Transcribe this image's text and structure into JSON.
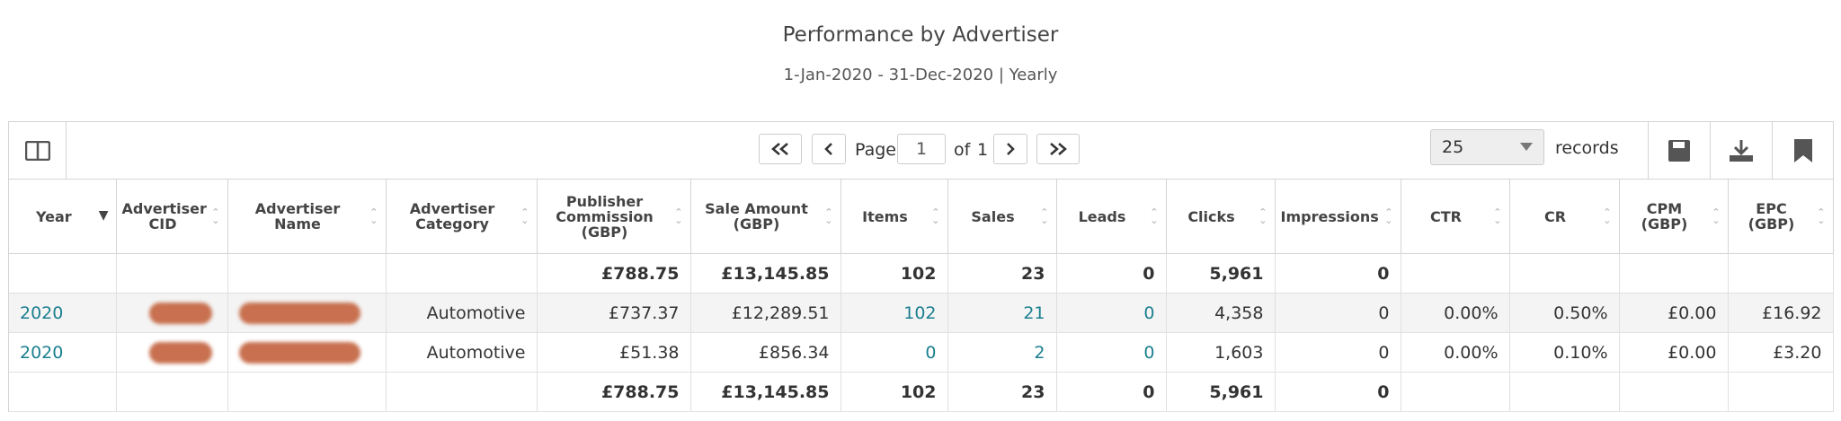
{
  "header": {
    "title": "Performance by Advertiser",
    "subtitle": "1-Jan-2020 - 31-Dec-2020 | Yearly"
  },
  "toolbar": {
    "page_label": "Page",
    "page_number": "1",
    "of_label": "of",
    "page_count": "1",
    "page_size": "25",
    "records_label": "records"
  },
  "table": {
    "columns": [
      "Year",
      "Advertiser CID",
      "Advertiser Name",
      "Advertiser Category",
      "Publisher Commission (GBP)",
      "Sale Amount (GBP)",
      "Items",
      "Sales",
      "Leads",
      "Clicks",
      "Impressions",
      "CTR",
      "CR",
      "CPM (GBP)",
      "EPC (GBP)"
    ],
    "rows": [
      {
        "commission": "£788.75",
        "sale": "£13,145.85",
        "items": "102",
        "sales": "23",
        "leads": "0",
        "clicks": "5,961",
        "impressions": "0"
      },
      {
        "year": "2020",
        "category": "Automotive",
        "commission": "£737.37",
        "sale": "£12,289.51",
        "items": "102",
        "sales": "21",
        "leads": "0",
        "clicks": "4,358",
        "impressions": "0",
        "ctr": "0.00%",
        "cr": "0.50%",
        "cpm": "£0.00",
        "epc": "£16.92"
      },
      {
        "year": "2020",
        "category": "Automotive",
        "commission": "£51.38",
        "sale": "£856.34",
        "items": "0",
        "sales": "2",
        "leads": "0",
        "clicks": "1,603",
        "impressions": "0",
        "ctr": "0.00%",
        "cr": "0.10%",
        "cpm": "£0.00",
        "epc": "£3.20"
      },
      {
        "commission": "£788.75",
        "sale": "£13,145.85",
        "items": "102",
        "sales": "23",
        "leads": "0",
        "clicks": "5,961",
        "impressions": "0"
      }
    ]
  }
}
